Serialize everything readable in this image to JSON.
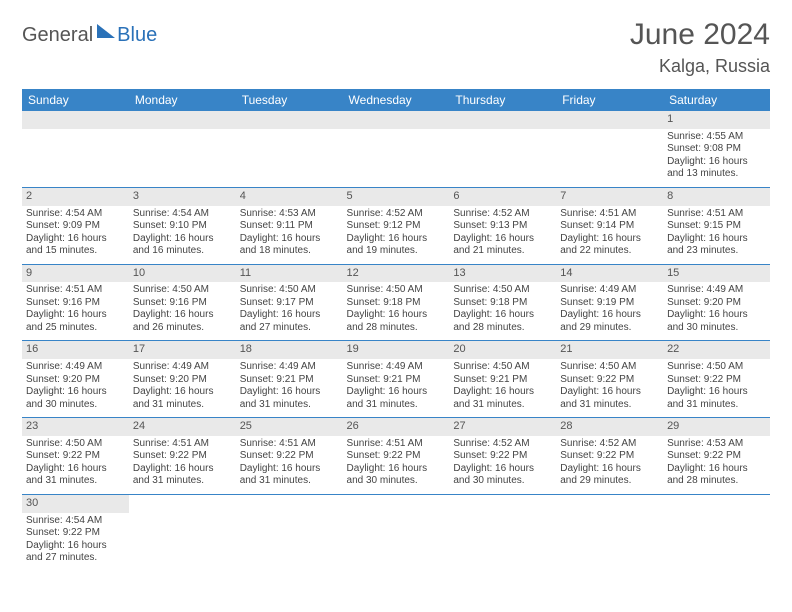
{
  "logo": {
    "part1": "General",
    "part2": "Blue"
  },
  "title": "June 2024",
  "location": "Kalga, Russia",
  "weekdays": [
    "Sunday",
    "Monday",
    "Tuesday",
    "Wednesday",
    "Thursday",
    "Friday",
    "Saturday"
  ],
  "colors": {
    "header_bg": "#3884c7",
    "header_text": "#ffffff",
    "daynum_bg": "#e9e9e9",
    "text": "#444444",
    "rule": "#3884c7",
    "logo_accent": "#2a71b8"
  },
  "cells": {
    "1": {
      "sunrise": "4:55 AM",
      "sunset": "9:08 PM",
      "daylight": "16 hours and 13 minutes."
    },
    "2": {
      "sunrise": "4:54 AM",
      "sunset": "9:09 PM",
      "daylight": "16 hours and 15 minutes."
    },
    "3": {
      "sunrise": "4:54 AM",
      "sunset": "9:10 PM",
      "daylight": "16 hours and 16 minutes."
    },
    "4": {
      "sunrise": "4:53 AM",
      "sunset": "9:11 PM",
      "daylight": "16 hours and 18 minutes."
    },
    "5": {
      "sunrise": "4:52 AM",
      "sunset": "9:12 PM",
      "daylight": "16 hours and 19 minutes."
    },
    "6": {
      "sunrise": "4:52 AM",
      "sunset": "9:13 PM",
      "daylight": "16 hours and 21 minutes."
    },
    "7": {
      "sunrise": "4:51 AM",
      "sunset": "9:14 PM",
      "daylight": "16 hours and 22 minutes."
    },
    "8": {
      "sunrise": "4:51 AM",
      "sunset": "9:15 PM",
      "daylight": "16 hours and 23 minutes."
    },
    "9": {
      "sunrise": "4:51 AM",
      "sunset": "9:16 PM",
      "daylight": "16 hours and 25 minutes."
    },
    "10": {
      "sunrise": "4:50 AM",
      "sunset": "9:16 PM",
      "daylight": "16 hours and 26 minutes."
    },
    "11": {
      "sunrise": "4:50 AM",
      "sunset": "9:17 PM",
      "daylight": "16 hours and 27 minutes."
    },
    "12": {
      "sunrise": "4:50 AM",
      "sunset": "9:18 PM",
      "daylight": "16 hours and 28 minutes."
    },
    "13": {
      "sunrise": "4:50 AM",
      "sunset": "9:18 PM",
      "daylight": "16 hours and 28 minutes."
    },
    "14": {
      "sunrise": "4:49 AM",
      "sunset": "9:19 PM",
      "daylight": "16 hours and 29 minutes."
    },
    "15": {
      "sunrise": "4:49 AM",
      "sunset": "9:20 PM",
      "daylight": "16 hours and 30 minutes."
    },
    "16": {
      "sunrise": "4:49 AM",
      "sunset": "9:20 PM",
      "daylight": "16 hours and 30 minutes."
    },
    "17": {
      "sunrise": "4:49 AM",
      "sunset": "9:20 PM",
      "daylight": "16 hours and 31 minutes."
    },
    "18": {
      "sunrise": "4:49 AM",
      "sunset": "9:21 PM",
      "daylight": "16 hours and 31 minutes."
    },
    "19": {
      "sunrise": "4:49 AM",
      "sunset": "9:21 PM",
      "daylight": "16 hours and 31 minutes."
    },
    "20": {
      "sunrise": "4:50 AM",
      "sunset": "9:21 PM",
      "daylight": "16 hours and 31 minutes."
    },
    "21": {
      "sunrise": "4:50 AM",
      "sunset": "9:22 PM",
      "daylight": "16 hours and 31 minutes."
    },
    "22": {
      "sunrise": "4:50 AM",
      "sunset": "9:22 PM",
      "daylight": "16 hours and 31 minutes."
    },
    "23": {
      "sunrise": "4:50 AM",
      "sunset": "9:22 PM",
      "daylight": "16 hours and 31 minutes."
    },
    "24": {
      "sunrise": "4:51 AM",
      "sunset": "9:22 PM",
      "daylight": "16 hours and 31 minutes."
    },
    "25": {
      "sunrise": "4:51 AM",
      "sunset": "9:22 PM",
      "daylight": "16 hours and 31 minutes."
    },
    "26": {
      "sunrise": "4:51 AM",
      "sunset": "9:22 PM",
      "daylight": "16 hours and 30 minutes."
    },
    "27": {
      "sunrise": "4:52 AM",
      "sunset": "9:22 PM",
      "daylight": "16 hours and 30 minutes."
    },
    "28": {
      "sunrise": "4:52 AM",
      "sunset": "9:22 PM",
      "daylight": "16 hours and 29 minutes."
    },
    "29": {
      "sunrise": "4:53 AM",
      "sunset": "9:22 PM",
      "daylight": "16 hours and 28 minutes."
    },
    "30": {
      "sunrise": "4:54 AM",
      "sunset": "9:22 PM",
      "daylight": "16 hours and 27 minutes."
    }
  },
  "layout": [
    [
      null,
      null,
      null,
      null,
      null,
      null,
      1
    ],
    [
      2,
      3,
      4,
      5,
      6,
      7,
      8
    ],
    [
      9,
      10,
      11,
      12,
      13,
      14,
      15
    ],
    [
      16,
      17,
      18,
      19,
      20,
      21,
      22
    ],
    [
      23,
      24,
      25,
      26,
      27,
      28,
      29
    ],
    [
      30,
      null,
      null,
      null,
      null,
      null,
      null
    ]
  ],
  "labels": {
    "sunrise": "Sunrise: ",
    "sunset": "Sunset: ",
    "daylight": "Daylight: "
  }
}
